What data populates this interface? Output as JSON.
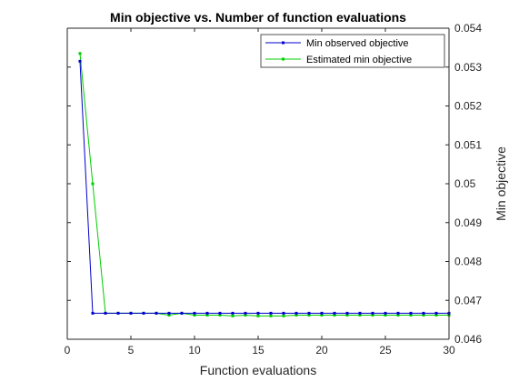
{
  "chart_data": {
    "type": "line",
    "title": "Min objective vs. Number of function evaluations",
    "xlabel": "Function evaluations",
    "ylabel": "Min objective",
    "xlim": [
      0,
      30
    ],
    "ylim": [
      0.046,
      0.054
    ],
    "xticks": [
      0,
      5,
      10,
      15,
      20,
      25,
      30
    ],
    "yticks": [
      0.046,
      0.047,
      0.048,
      0.049,
      0.05,
      0.051,
      0.052,
      0.053,
      0.054
    ],
    "ytick_labels": [
      "0.046",
      "0.047",
      "0.048",
      "0.049",
      "0.05",
      "0.051",
      "0.052",
      "0.053",
      "0.054"
    ],
    "grid": false,
    "legend_position": "top-right",
    "y_axis_side": "right",
    "x": [
      1,
      2,
      3,
      4,
      5,
      6,
      7,
      8,
      9,
      10,
      11,
      12,
      13,
      14,
      15,
      16,
      17,
      18,
      19,
      20,
      21,
      22,
      23,
      24,
      25,
      26,
      27,
      28,
      29,
      30
    ],
    "series": [
      {
        "name": "Min observed objective",
        "color": "#0000cc",
        "values": [
          0.05315,
          0.04667,
          0.04667,
          0.04667,
          0.04667,
          0.04667,
          0.04667,
          0.04667,
          0.04667,
          0.04667,
          0.04667,
          0.04667,
          0.04667,
          0.04667,
          0.04667,
          0.04667,
          0.04667,
          0.04667,
          0.04667,
          0.04667,
          0.04667,
          0.04667,
          0.04667,
          0.04667,
          0.04667,
          0.04667,
          0.04667,
          0.04667,
          0.04667,
          0.04667
        ]
      },
      {
        "name": "Estimated min objective",
        "color": "#00cc00",
        "values": [
          0.05335,
          0.05,
          0.04667,
          0.04667,
          0.04667,
          0.04667,
          0.04667,
          0.04662,
          0.04667,
          0.04662,
          0.04662,
          0.04662,
          0.0466,
          0.04662,
          0.0466,
          0.0466,
          0.0466,
          0.04662,
          0.04662,
          0.04662,
          0.04662,
          0.04662,
          0.04662,
          0.04662,
          0.04662,
          0.04662,
          0.04662,
          0.04662,
          0.04662,
          0.04662
        ]
      }
    ]
  }
}
